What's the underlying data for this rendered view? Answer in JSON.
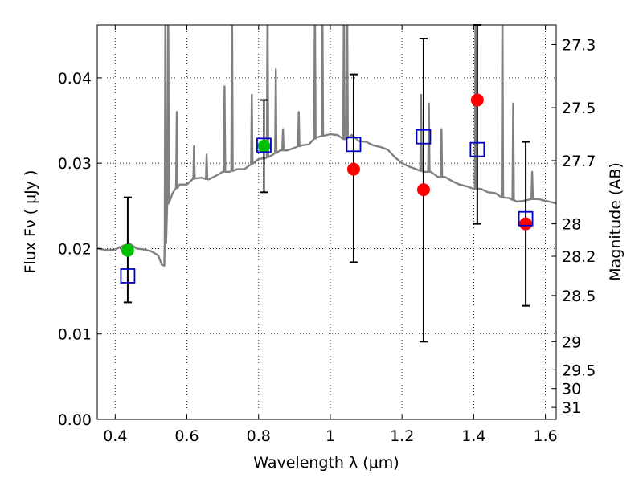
{
  "chart_data": {
    "type": "scatter",
    "xlabel": "Wavelength  λ (μm)",
    "ylabel": "Flux  Fν  ( μJy )",
    "ylabel_right": "Magnitude (AB)",
    "xlim": [
      0.35,
      1.63
    ],
    "ylim": [
      0.0,
      0.0462
    ],
    "grid": true,
    "x_ticks": [
      0.4,
      0.6,
      0.8,
      1.0,
      1.2,
      1.4,
      1.6
    ],
    "x_tick_labels": [
      "0.4",
      "0.6",
      "0.8",
      "1",
      "1.2",
      "1.4",
      "1.6"
    ],
    "y_ticks": [
      0.0,
      0.01,
      0.02,
      0.03,
      0.04
    ],
    "y_tick_labels": [
      "0.00",
      "0.01",
      "0.02",
      "0.03",
      "0.04"
    ],
    "mag_ticks": [
      {
        "label": "27.3",
        "flux": 0.0439
      },
      {
        "label": "27.5",
        "flux": 0.0365
      },
      {
        "label": "27.7",
        "flux": 0.0303
      },
      {
        "label": "28",
        "flux": 0.0229
      },
      {
        "label": "28.2",
        "flux": 0.0191
      },
      {
        "label": "28.5",
        "flux": 0.0145
      },
      {
        "label": "29",
        "flux": 0.0091
      },
      {
        "label": "29.5",
        "flux": 0.0058
      },
      {
        "label": "30",
        "flux": 0.0036
      },
      {
        "label": "31",
        "flux": 0.0014
      }
    ],
    "model_spectrum": {
      "color": "#808080",
      "continuum": [
        [
          0.35,
          0.02
        ],
        [
          0.38,
          0.0198
        ],
        [
          0.4,
          0.0199
        ],
        [
          0.42,
          0.0203
        ],
        [
          0.44,
          0.0206
        ],
        [
          0.46,
          0.02
        ],
        [
          0.48,
          0.0199
        ],
        [
          0.5,
          0.0197
        ],
        [
          0.52,
          0.0192
        ],
        [
          0.53,
          0.0181
        ],
        [
          0.537,
          0.018
        ],
        [
          0.545,
          0.025
        ],
        [
          0.56,
          0.0265
        ],
        [
          0.58,
          0.0275
        ],
        [
          0.6,
          0.0275
        ],
        [
          0.62,
          0.0282
        ],
        [
          0.64,
          0.0283
        ],
        [
          0.66,
          0.0281
        ],
        [
          0.68,
          0.0285
        ],
        [
          0.7,
          0.029
        ],
        [
          0.72,
          0.029
        ],
        [
          0.74,
          0.0293
        ],
        [
          0.76,
          0.0293
        ],
        [
          0.78,
          0.0299
        ],
        [
          0.8,
          0.0305
        ],
        [
          0.82,
          0.0306
        ],
        [
          0.84,
          0.031
        ],
        [
          0.86,
          0.0315
        ],
        [
          0.88,
          0.0315
        ],
        [
          0.9,
          0.0318
        ],
        [
          0.92,
          0.0321
        ],
        [
          0.94,
          0.0322
        ],
        [
          0.96,
          0.033
        ],
        [
          0.98,
          0.0332
        ],
        [
          1.0,
          0.0334
        ],
        [
          1.02,
          0.0333
        ],
        [
          1.04,
          0.0328
        ],
        [
          1.06,
          0.0333
        ],
        [
          1.08,
          0.0326
        ],
        [
          1.1,
          0.0325
        ],
        [
          1.12,
          0.0321
        ],
        [
          1.14,
          0.0319
        ],
        [
          1.16,
          0.0316
        ],
        [
          1.18,
          0.0307
        ],
        [
          1.2,
          0.03
        ],
        [
          1.22,
          0.0296
        ],
        [
          1.24,
          0.0293
        ],
        [
          1.26,
          0.029
        ],
        [
          1.28,
          0.029
        ],
        [
          1.3,
          0.0284
        ],
        [
          1.32,
          0.0284
        ],
        [
          1.34,
          0.0279
        ],
        [
          1.36,
          0.0275
        ],
        [
          1.38,
          0.0273
        ],
        [
          1.4,
          0.027
        ],
        [
          1.42,
          0.027
        ],
        [
          1.44,
          0.0266
        ],
        [
          1.46,
          0.0265
        ],
        [
          1.48,
          0.026
        ],
        [
          1.5,
          0.0259
        ],
        [
          1.52,
          0.0255
        ],
        [
          1.54,
          0.0256
        ],
        [
          1.56,
          0.0258
        ],
        [
          1.58,
          0.0258
        ],
        [
          1.6,
          0.0256
        ],
        [
          1.63,
          0.0253
        ]
      ],
      "emission_lines": [
        {
          "x": 0.54,
          "peak": 0.05
        },
        {
          "x": 0.548,
          "peak": 0.05
        },
        {
          "x": 0.572,
          "peak": 0.036
        },
        {
          "x": 0.62,
          "peak": 0.032
        },
        {
          "x": 0.655,
          "peak": 0.031
        },
        {
          "x": 0.705,
          "peak": 0.039
        },
        {
          "x": 0.726,
          "peak": 0.05
        },
        {
          "x": 0.781,
          "peak": 0.038
        },
        {
          "x": 0.825,
          "peak": 0.05
        },
        {
          "x": 0.848,
          "peak": 0.041
        },
        {
          "x": 0.868,
          "peak": 0.034
        },
        {
          "x": 0.912,
          "peak": 0.036
        },
        {
          "x": 0.957,
          "peak": 0.05
        },
        {
          "x": 0.978,
          "peak": 0.05
        },
        {
          "x": 1.038,
          "peak": 0.05
        },
        {
          "x": 1.047,
          "peak": 0.05
        },
        {
          "x": 1.253,
          "peak": 0.038
        },
        {
          "x": 1.275,
          "peak": 0.037
        },
        {
          "x": 1.31,
          "peak": 0.034
        },
        {
          "x": 1.405,
          "peak": 0.047
        },
        {
          "x": 1.48,
          "peak": 0.05
        },
        {
          "x": 1.51,
          "peak": 0.037
        },
        {
          "x": 1.563,
          "peak": 0.029
        }
      ]
    },
    "error_bars": [
      {
        "x": 0.435,
        "y_low": 0.0137,
        "y_high": 0.026
      },
      {
        "x": 0.815,
        "y_low": 0.0266,
        "y_high": 0.0374
      },
      {
        "x": 1.065,
        "y_low": 0.0184,
        "y_high": 0.0404
      },
      {
        "x": 1.26,
        "y_low": 0.0091,
        "y_high": 0.0446
      },
      {
        "x": 1.41,
        "y_low": 0.0229,
        "y_high": 0.0462
      },
      {
        "x": 1.545,
        "y_low": 0.0133,
        "y_high": 0.0325
      }
    ],
    "series": [
      {
        "marker": "circle",
        "color": "#00c000",
        "points": [
          [
            0.435,
            0.0198
          ],
          [
            0.815,
            0.032
          ]
        ]
      },
      {
        "marker": "circle",
        "color": "#ff0000",
        "points": [
          [
            1.065,
            0.0293
          ],
          [
            1.26,
            0.0269
          ],
          [
            1.41,
            0.0374
          ],
          [
            1.545,
            0.0229
          ]
        ]
      },
      {
        "marker": "open-square",
        "color": "#0000cc",
        "points": [
          [
            0.435,
            0.0168
          ],
          [
            0.815,
            0.0321
          ],
          [
            1.065,
            0.0322
          ],
          [
            1.26,
            0.0331
          ],
          [
            1.41,
            0.0316
          ],
          [
            1.545,
            0.0235
          ]
        ]
      }
    ]
  }
}
